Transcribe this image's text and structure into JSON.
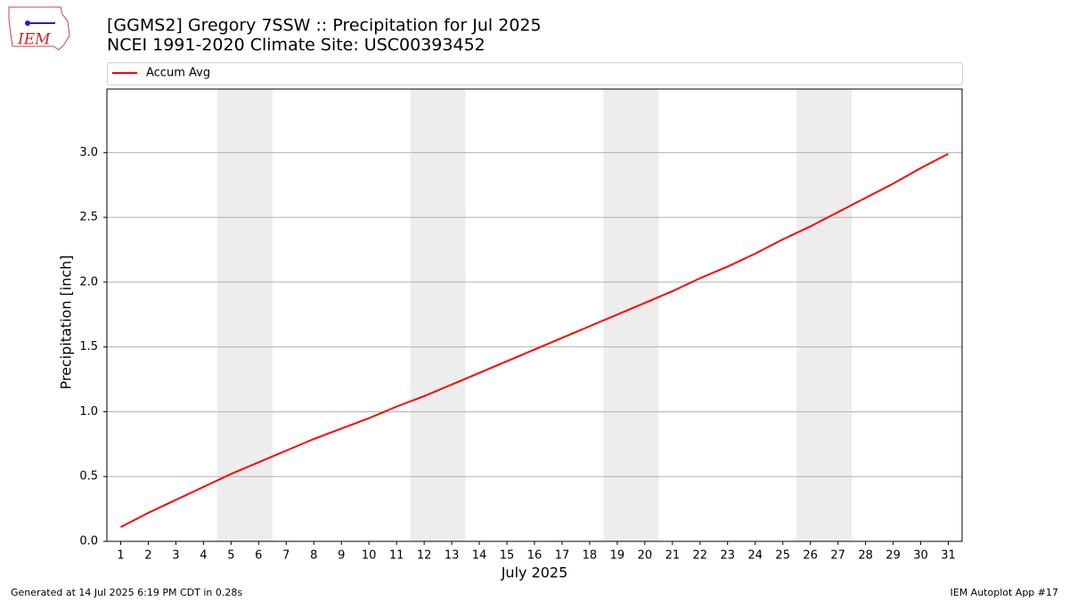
{
  "logo_text": "IEM",
  "footer_left": "Generated at 14 Jul 2025 6:19 PM CDT in 0.28s",
  "footer_right": "IEM Autoplot App #17",
  "chart_data": {
    "type": "line",
    "title": "[GGMS2] Gregory 7SSW :: Precipitation for Jul 2025",
    "subtitle": "NCEI 1991-2020 Climate Site: USC00393452",
    "x_label": "July 2025",
    "y_label": "Precipitation [inch]",
    "x": [
      1,
      2,
      3,
      4,
      5,
      6,
      7,
      8,
      9,
      10,
      11,
      12,
      13,
      14,
      15,
      16,
      17,
      18,
      19,
      20,
      21,
      22,
      23,
      24,
      25,
      26,
      27,
      28,
      29,
      30,
      31
    ],
    "series": [
      {
        "name": "Accum Avg",
        "color": "#ff0000",
        "values": [
          0.11,
          0.22,
          0.32,
          0.42,
          0.52,
          0.61,
          0.7,
          0.79,
          0.87,
          0.95,
          1.04,
          1.12,
          1.21,
          1.3,
          1.39,
          1.48,
          1.57,
          1.66,
          1.75,
          1.84,
          1.93,
          2.03,
          2.12,
          2.22,
          2.33,
          2.43,
          2.54,
          2.65,
          2.76,
          2.88,
          2.99
        ]
      }
    ],
    "shaded_spans": [
      [
        4.5,
        6.5
      ],
      [
        11.5,
        13.5
      ],
      [
        18.5,
        20.5
      ],
      [
        25.5,
        27.5
      ]
    ],
    "shade_color": "#ededed",
    "xlim": [
      0.5,
      31.5
    ],
    "xticks": [
      1,
      2,
      3,
      4,
      5,
      6,
      7,
      8,
      9,
      10,
      11,
      12,
      13,
      14,
      15,
      16,
      17,
      18,
      19,
      20,
      21,
      22,
      23,
      24,
      25,
      26,
      27,
      28,
      29,
      30,
      31
    ],
    "ylim": [
      0,
      3.49
    ],
    "yticks": [
      {
        "value": 0,
        "label": "0.0"
      },
      0.5,
      {
        "value": 1,
        "label": "1.0"
      },
      1.5,
      {
        "value": 2,
        "label": "2.0"
      },
      2.5,
      {
        "value": 3,
        "label": "3.0"
      }
    ],
    "grid": true,
    "legend": "top"
  }
}
